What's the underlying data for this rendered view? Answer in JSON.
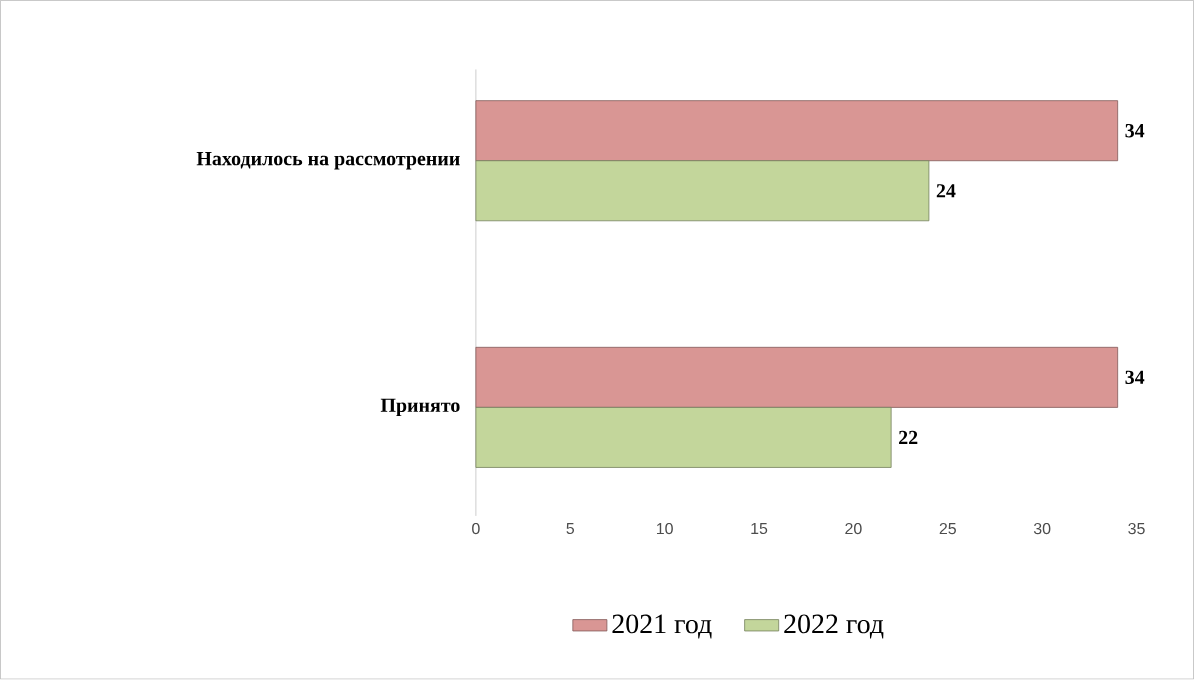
{
  "chart_data": {
    "type": "bar",
    "orientation": "horizontal",
    "categories": [
      "Находилось на рассмотрении",
      "Принято"
    ],
    "series": [
      {
        "name": "2021 год",
        "color": "#d99694",
        "values": [
          34,
          34
        ]
      },
      {
        "name": "2022 год",
        "color": "#c3d69b",
        "values": [
          24,
          22
        ]
      }
    ],
    "xlim": [
      0,
      35
    ],
    "xticks": [
      0,
      5,
      10,
      15,
      20,
      25,
      30,
      35
    ],
    "data_labels": true,
    "legend": "bottom"
  }
}
